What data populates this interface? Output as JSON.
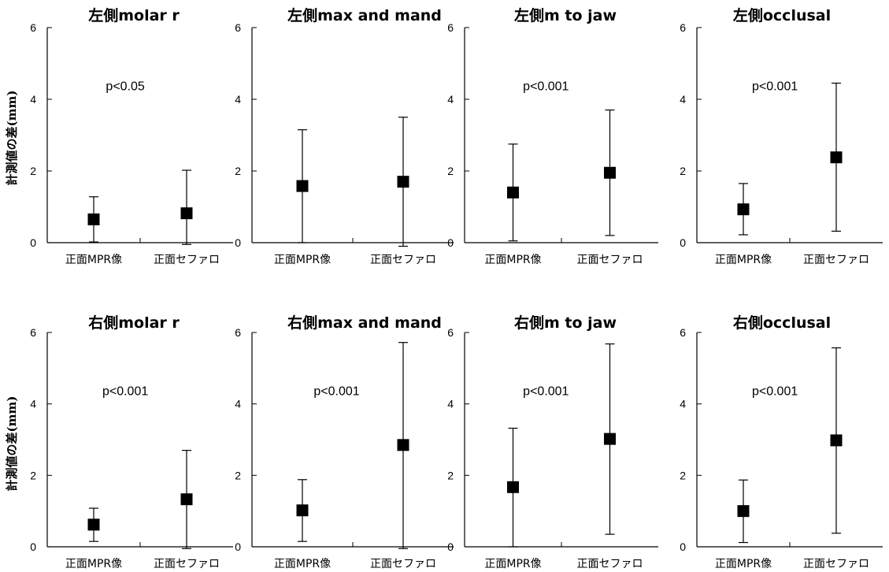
{
  "ylabel": "計測値の差(mm)",
  "chart_data": [
    {
      "type": "scatter",
      "title": "左側molar r",
      "categories": [
        "正面MPR像",
        "正面セファロ"
      ],
      "ylim": [
        0,
        6
      ],
      "yticks": [
        "0",
        "2",
        "4",
        "6"
      ],
      "annotation": "p<0.05",
      "series": [
        {
          "values": [
            0.65,
            0.82
          ],
          "lower": [
            0.02,
            -0.05
          ],
          "upper": [
            1.28,
            2.02
          ]
        }
      ]
    },
    {
      "type": "scatter",
      "title": "左側max and mand",
      "categories": [
        "正面MPR像",
        "正面セファロ"
      ],
      "ylim": [
        0,
        6
      ],
      "yticks": [
        "0",
        "2",
        "4",
        "6"
      ],
      "annotation": "",
      "series": [
        {
          "values": [
            1.58,
            1.7
          ],
          "lower": [
            0.0,
            -0.1
          ],
          "upper": [
            3.15,
            3.5
          ]
        }
      ]
    },
    {
      "type": "scatter",
      "title": "左側m to jaw",
      "categories": [
        "正面MPR像",
        "正面セファロ"
      ],
      "ylim": [
        0,
        6
      ],
      "yticks": [
        "0",
        "2",
        "4",
        "6"
      ],
      "annotation": "p<0.001",
      "series": [
        {
          "values": [
            1.4,
            1.95
          ],
          "lower": [
            0.05,
            0.2
          ],
          "upper": [
            2.75,
            3.7
          ]
        }
      ]
    },
    {
      "type": "scatter",
      "title": "左側occlusal",
      "categories": [
        "正面MPR像",
        "正面セファロ"
      ],
      "ylim": [
        0,
        6
      ],
      "yticks": [
        "0",
        "2",
        "4",
        "6"
      ],
      "annotation": "p<0.001",
      "series": [
        {
          "values": [
            0.93,
            2.38
          ],
          "lower": [
            0.22,
            0.32
          ],
          "upper": [
            1.65,
            4.45
          ]
        }
      ]
    },
    {
      "type": "scatter",
      "title": "右側molar r",
      "categories": [
        "正面MPR像",
        "正面セファロ"
      ],
      "ylim": [
        0,
        6
      ],
      "yticks": [
        "0",
        "2",
        "4",
        "6"
      ],
      "annotation": "p<0.001",
      "series": [
        {
          "values": [
            0.62,
            1.33
          ],
          "lower": [
            0.15,
            -0.05
          ],
          "upper": [
            1.08,
            2.7
          ]
        }
      ]
    },
    {
      "type": "scatter",
      "title": "右側max and mand",
      "categories": [
        "正面MPR像",
        "正面セファロ"
      ],
      "ylim": [
        0,
        6
      ],
      "yticks": [
        "0",
        "2",
        "4",
        "6"
      ],
      "annotation": "p<0.001",
      "series": [
        {
          "values": [
            1.02,
            2.85
          ],
          "lower": [
            0.15,
            -0.05
          ],
          "upper": [
            1.88,
            5.72
          ]
        }
      ]
    },
    {
      "type": "scatter",
      "title": "右側m to jaw",
      "categories": [
        "正面MPR像",
        "正面セファロ"
      ],
      "ylim": [
        0,
        6
      ],
      "yticks": [
        "0",
        "2",
        "4",
        "6"
      ],
      "annotation": "p<0.001",
      "series": [
        {
          "values": [
            1.67,
            3.02
          ],
          "lower": [
            0.0,
            0.35
          ],
          "upper": [
            3.32,
            5.68
          ]
        }
      ]
    },
    {
      "type": "scatter",
      "title": "右側occlusal",
      "categories": [
        "正面MPR像",
        "正面セファロ"
      ],
      "ylim": [
        0,
        6
      ],
      "yticks": [
        "0",
        "2",
        "4",
        "6"
      ],
      "annotation": "p<0.001",
      "series": [
        {
          "values": [
            1.0,
            2.98
          ],
          "lower": [
            0.12,
            0.38
          ],
          "upper": [
            1.87,
            5.57
          ]
        }
      ]
    }
  ]
}
